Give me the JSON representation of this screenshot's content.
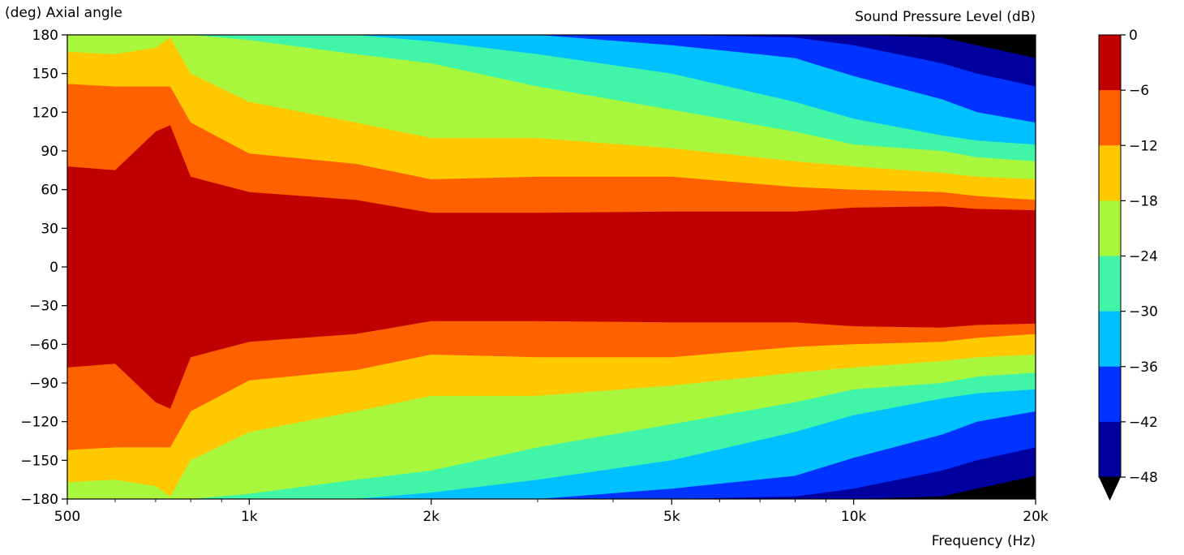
{
  "chart_data": {
    "type": "heatmap",
    "title": "",
    "colorbar_label": "Sound Pressure Level (dB)",
    "ylabel": "(deg) Axial angle",
    "xlabel": "Frequency (Hz)",
    "x_scale": "log",
    "xlim": [
      500,
      20000
    ],
    "ylim": [
      -180,
      180
    ],
    "x_ticks": [
      500,
      1000,
      2000,
      5000,
      10000,
      20000
    ],
    "x_tick_labels": [
      "500",
      "1k",
      "2k",
      "5k",
      "10k",
      "20k"
    ],
    "y_ticks": [
      180,
      150,
      120,
      90,
      60,
      30,
      0,
      -30,
      -60,
      -90,
      -120,
      -150,
      -180
    ],
    "y_tick_labels": [
      "180",
      "150",
      "120",
      "90",
      "60",
      "30",
      "0",
      "−30",
      "−60",
      "−90",
      "−120",
      "−150",
      "−180"
    ],
    "levels": [
      -48,
      -42,
      -36,
      -30,
      -24,
      -18,
      -12,
      -6,
      0
    ],
    "level_tick_labels": [
      "0",
      "−6",
      "−12",
      "−18",
      "−24",
      "−30",
      "−36",
      "−42",
      "−48"
    ],
    "level_colors": [
      "#00009e",
      "#0033ff",
      "#00c0ff",
      "#40f5a8",
      "#a9f73d",
      "#ffc800",
      "#ff6000",
      "#c00000"
    ],
    "under_color": "#000000",
    "grid": false,
    "contour_boundaries_deg": {
      "frequency_hz": [
        500,
        600,
        700,
        740,
        800,
        1000,
        1500,
        2000,
        3000,
        5000,
        8000,
        10000,
        14000,
        16000,
        20000
      ],
      "-6dB": [
        78,
        75,
        105,
        110,
        70,
        58,
        52,
        42,
        42,
        43,
        43,
        46,
        47,
        45,
        44
      ],
      "-12dB": [
        142,
        140,
        140,
        140,
        112,
        88,
        80,
        68,
        70,
        70,
        62,
        60,
        58,
        55,
        52
      ],
      "-18dB": [
        167,
        165,
        170,
        178,
        150,
        128,
        112,
        100,
        100,
        92,
        82,
        78,
        73,
        70,
        68
      ],
      "-24dB": [
        180,
        180,
        180,
        180,
        180,
        176,
        165,
        158,
        140,
        122,
        105,
        95,
        90,
        85,
        82
      ],
      "-30dB": [
        180,
        180,
        180,
        180,
        180,
        180,
        180,
        175,
        165,
        150,
        128,
        115,
        102,
        98,
        95
      ],
      "-36dB": [
        180,
        180,
        180,
        180,
        180,
        180,
        180,
        180,
        180,
        172,
        162,
        148,
        130,
        120,
        112
      ],
      "-42dB": [
        180,
        180,
        180,
        180,
        180,
        180,
        180,
        180,
        180,
        180,
        178,
        172,
        158,
        150,
        140
      ],
      "-48dB": [
        180,
        180,
        180,
        180,
        180,
        180,
        180,
        180,
        180,
        180,
        180,
        180,
        178,
        172,
        162
      ]
    }
  }
}
